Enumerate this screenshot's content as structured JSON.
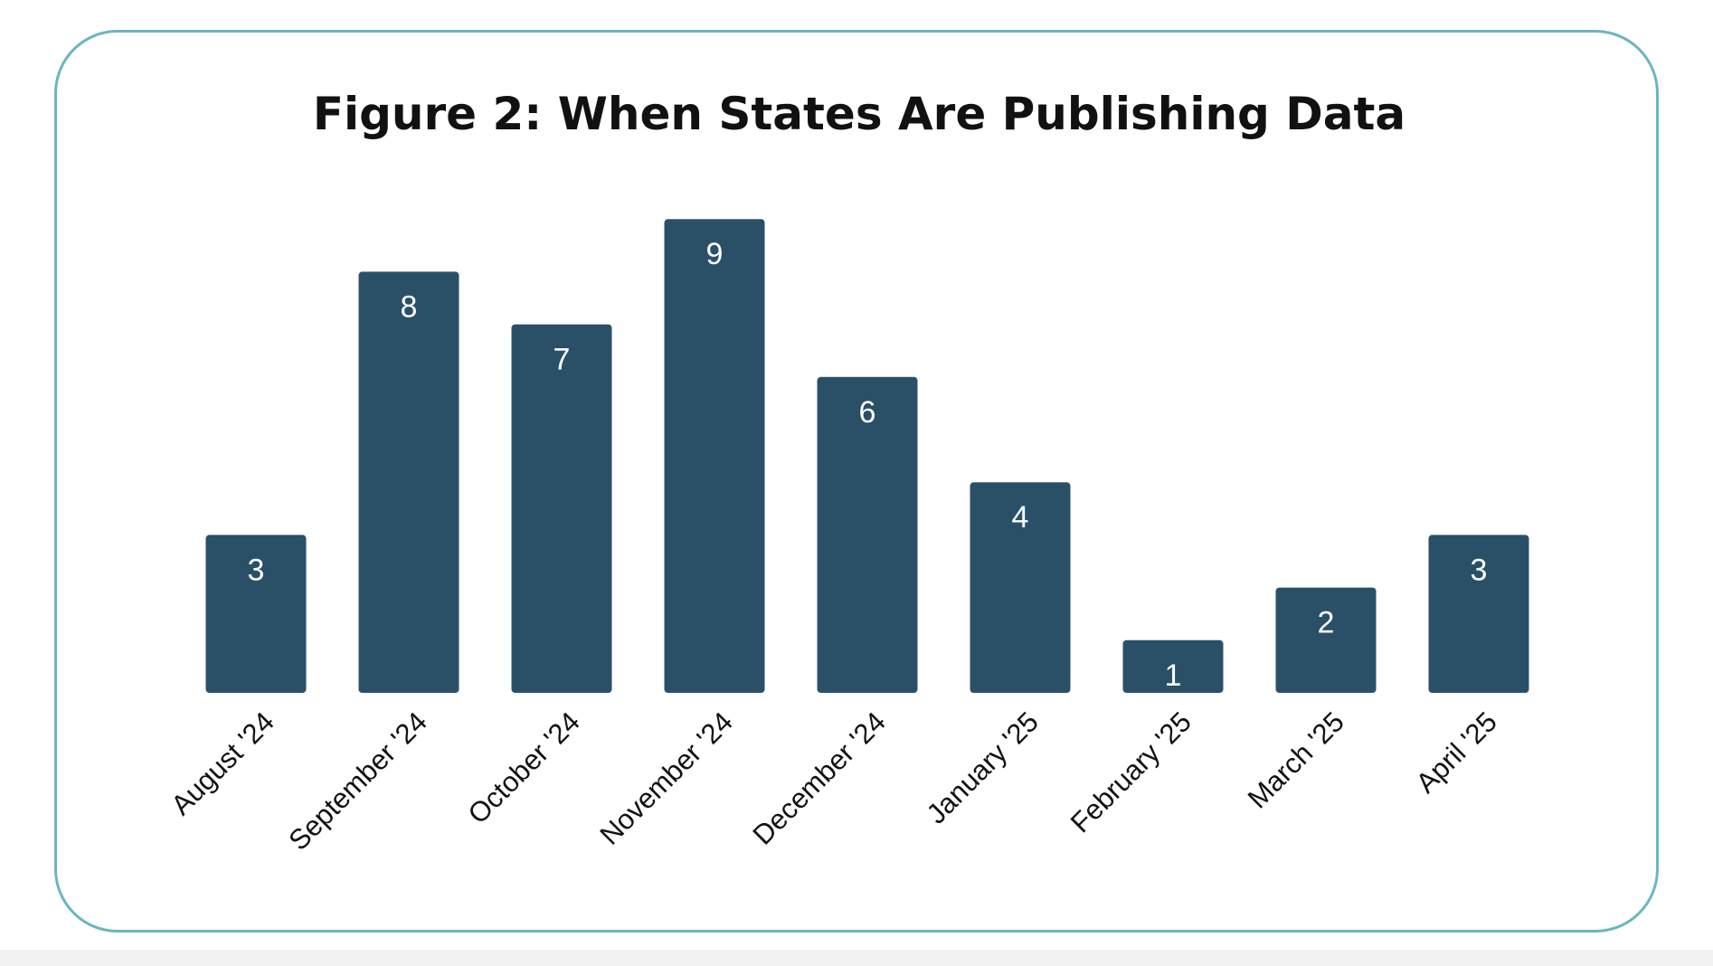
{
  "chart_data": {
    "type": "bar",
    "title": "Figure 2: When States Are Publishing Data",
    "categories": [
      "August '24",
      "September '24",
      "October '24",
      "November '24",
      "December '24",
      "January '25",
      "February '25",
      "March '25",
      "April '25"
    ],
    "values": [
      3,
      8,
      7,
      9,
      6,
      4,
      1,
      2,
      3
    ],
    "data_labels": [
      "3",
      "8",
      "7",
      "9",
      "6",
      "4",
      "1",
      "2",
      "3"
    ],
    "xlabel": "",
    "ylabel": "",
    "ylim": [
      0,
      9
    ],
    "grid": false,
    "legend": "none"
  },
  "colors": {
    "bar": "#2a5068",
    "card_border": "#6bb6c0",
    "title": "#111111"
  }
}
